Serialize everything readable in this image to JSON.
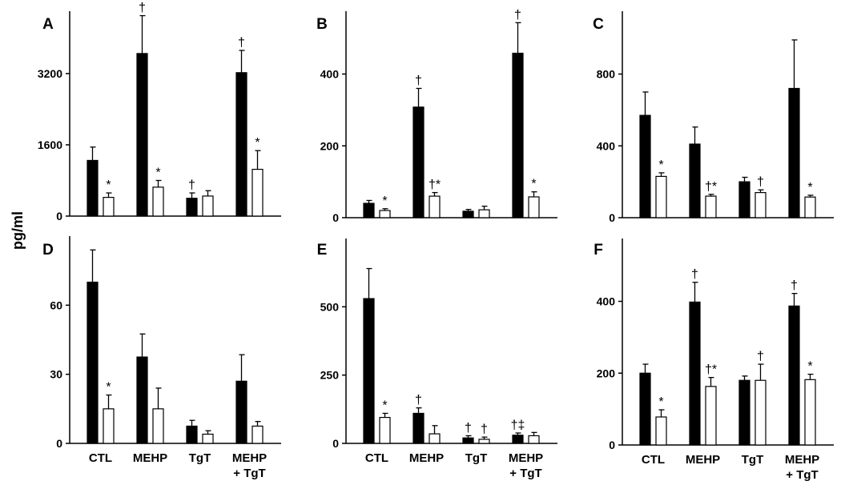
{
  "figure": {
    "ylabel": "pg/ml",
    "categories": [
      "CTL",
      "MEHP",
      "TgT",
      "MEHP\n+ TgT"
    ],
    "colors": {
      "bar_filled": "#000000",
      "bar_open": "#ffffff",
      "stroke": "#000000"
    }
  },
  "chart_data": [
    {
      "panel": "A",
      "type": "bar",
      "categories": [
        "CTL",
        "MEHP",
        "TgT",
        "MEHP\n+ TgT"
      ],
      "ylim": [
        0,
        4600
      ],
      "yticks": [
        0,
        1600,
        3200
      ],
      "series": [
        {
          "values": [
            1250,
            3650,
            400,
            3220
          ],
          "errors": [
            300,
            850,
            120,
            500
          ],
          "markers": [
            "",
            "†",
            "†",
            "†"
          ]
        },
        {
          "values": [
            420,
            650,
            450,
            1050
          ],
          "errors": [
            100,
            150,
            120,
            420
          ],
          "markers": [
            "*",
            "*",
            "",
            "*"
          ]
        }
      ]
    },
    {
      "panel": "B",
      "type": "bar",
      "categories": [
        "CTL",
        "MEHP",
        "TgT",
        "MEHP\n+ TgT"
      ],
      "ylim": [
        0,
        575
      ],
      "yticks": [
        0,
        200,
        400
      ],
      "series": [
        {
          "values": [
            40,
            308,
            18,
            458
          ],
          "errors": [
            8,
            52,
            5,
            85
          ],
          "markers": [
            "",
            "†",
            "",
            "†"
          ]
        },
        {
          "values": [
            20,
            60,
            22,
            58
          ],
          "errors": [
            5,
            10,
            10,
            14
          ],
          "markers": [
            "*",
            "†*",
            "",
            "*"
          ]
        }
      ]
    },
    {
      "panel": "C",
      "type": "bar",
      "categories": [
        "CTL",
        "MEHP",
        "TgT",
        "MEHP\n+ TgT"
      ],
      "ylim": [
        0,
        1150
      ],
      "yticks": [
        0,
        400,
        800
      ],
      "series": [
        {
          "values": [
            570,
            410,
            200,
            720
          ],
          "errors": [
            130,
            95,
            25,
            270
          ],
          "markers": [
            "",
            "",
            "",
            ""
          ]
        },
        {
          "values": [
            230,
            120,
            140,
            115
          ],
          "errors": [
            20,
            10,
            15,
            10
          ],
          "markers": [
            "*",
            "†*",
            "†",
            "*"
          ]
        }
      ]
    },
    {
      "panel": "D",
      "type": "bar",
      "categories": [
        "CTL",
        "MEHP",
        "TgT",
        "MEHP\n+ TgT"
      ],
      "ylim": [
        0,
        90
      ],
      "yticks": [
        0,
        30,
        60
      ],
      "series": [
        {
          "values": [
            70,
            37.5,
            7.5,
            27
          ],
          "errors": [
            14,
            10,
            2.5,
            11.5
          ],
          "markers": [
            "",
            "",
            "",
            ""
          ]
        },
        {
          "values": [
            15,
            15,
            4,
            7.5
          ],
          "errors": [
            6,
            9,
            1.5,
            2
          ],
          "markers": [
            "*",
            "",
            "",
            ""
          ]
        }
      ]
    },
    {
      "panel": "E",
      "type": "bar",
      "categories": [
        "CTL",
        "MEHP",
        "TgT",
        "MEHP\n+ TgT"
      ],
      "ylim": [
        0,
        750
      ],
      "yticks": [
        0,
        250,
        500
      ],
      "series": [
        {
          "values": [
            530,
            110,
            20,
            30
          ],
          "errors": [
            110,
            20,
            8,
            8
          ],
          "markers": [
            "",
            "†",
            "†",
            "†‡"
          ]
        },
        {
          "values": [
            95,
            35,
            15,
            28
          ],
          "errors": [
            15,
            30,
            8,
            12
          ],
          "markers": [
            "*",
            "",
            "†",
            ""
          ]
        }
      ]
    },
    {
      "panel": "F",
      "type": "bar",
      "categories": [
        "CTL",
        "MEHP",
        "TgT",
        "MEHP\n+ TgT"
      ],
      "ylim": [
        0,
        575
      ],
      "yticks": [
        0,
        200,
        400
      ],
      "series": [
        {
          "values": [
            200,
            398,
            180,
            387
          ],
          "errors": [
            25,
            55,
            12,
            35
          ],
          "markers": [
            "",
            "†",
            "",
            "†"
          ]
        },
        {
          "values": [
            78,
            163,
            180,
            182
          ],
          "errors": [
            20,
            25,
            45,
            15
          ],
          "markers": [
            "*",
            "†*",
            "†",
            "*"
          ]
        }
      ]
    }
  ]
}
